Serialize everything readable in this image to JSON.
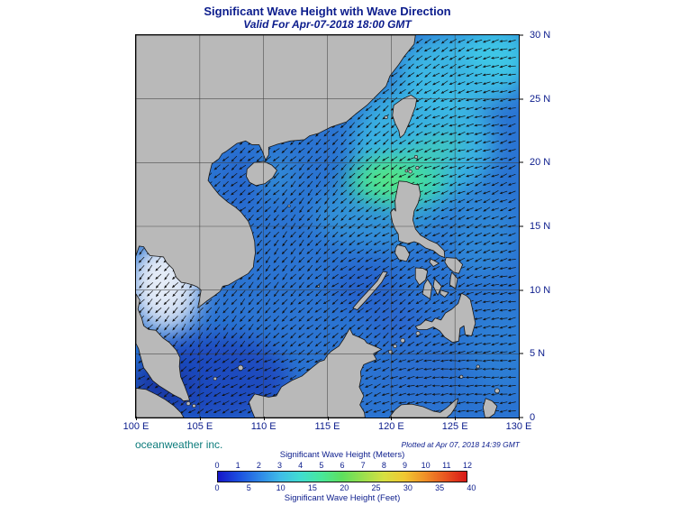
{
  "title": "Significant Wave Height with Wave Direction",
  "subtitle": "Valid For Apr-07-2018 18:00 GMT",
  "credit": "oceanweather inc.",
  "plotted": "Plotted at Apr 07, 2018 14:39 GMT",
  "axes": {
    "x_ticks": [
      "100 E",
      "105 E",
      "110 E",
      "115 E",
      "120 E",
      "125 E",
      "130 E"
    ],
    "y_ticks": [
      "30 N",
      "25 N",
      "20 N",
      "15 N",
      "10 N",
      "5 N",
      "0"
    ],
    "lon_range": [
      100,
      130
    ],
    "lat_range": [
      0,
      30
    ],
    "grid_interval_deg": 5
  },
  "colorbar": {
    "title_meters": "Significant Wave Height (Meters)",
    "title_feet": "Significant Wave Height (Feet)",
    "meter_ticks": [
      0,
      1,
      2,
      3,
      4,
      5,
      6,
      7,
      8,
      9,
      10,
      11,
      12
    ],
    "feet_ticks": [
      0,
      5,
      10,
      15,
      20,
      25,
      30,
      35,
      40
    ],
    "max_meters": 12,
    "colors": [
      "#1616c8",
      "#1b4fe0",
      "#2e86e8",
      "#3fbce8",
      "#40ddd0",
      "#48e89a",
      "#5ee05e",
      "#9ae04e",
      "#d6e042",
      "#f0c832",
      "#f09028",
      "#e85420",
      "#d81818"
    ]
  },
  "colors": {
    "title_text": "#0b1c8c",
    "credit_text": "#0c7b7b",
    "land": "#b9b9b9",
    "sea_base": "#2b74d2",
    "arrow": "#111111"
  },
  "chart_data": {
    "type": "heatmap",
    "variable": "significant_wave_height",
    "units": "meters",
    "valid_time": "Apr-07-2018 18:00 GMT",
    "extent": {
      "lon": [
        100,
        130
      ],
      "lat": [
        0,
        30
      ]
    },
    "wave_direction": "arrows point generally toward the southwest; more westward in the Philippine Sea and near the equator",
    "regions": [
      {
        "name": "Luzon Strait / northeast of Luzon",
        "approx_value_m": 4.5
      },
      {
        "name": "Taiwan Strait / east of Taiwan",
        "approx_value_m": 3.5
      },
      {
        "name": "Northeast corner (East China Sea)",
        "approx_value_m": 3
      },
      {
        "name": "Central South China Sea",
        "approx_value_m": 2
      },
      {
        "name": "Philippine Sea (east of Philippines)",
        "approx_value_m": 2.5
      },
      {
        "name": "Gulf of Tonkin",
        "approx_value_m": 1.5
      },
      {
        "name": "Gulf of Thailand",
        "approx_value_m": 0.3
      },
      {
        "name": "Sulu Sea",
        "approx_value_m": 1.5
      },
      {
        "name": "Celebes Sea",
        "approx_value_m": 2
      },
      {
        "name": "Java Sea / southwest corner",
        "approx_value_m": 1
      }
    ]
  }
}
